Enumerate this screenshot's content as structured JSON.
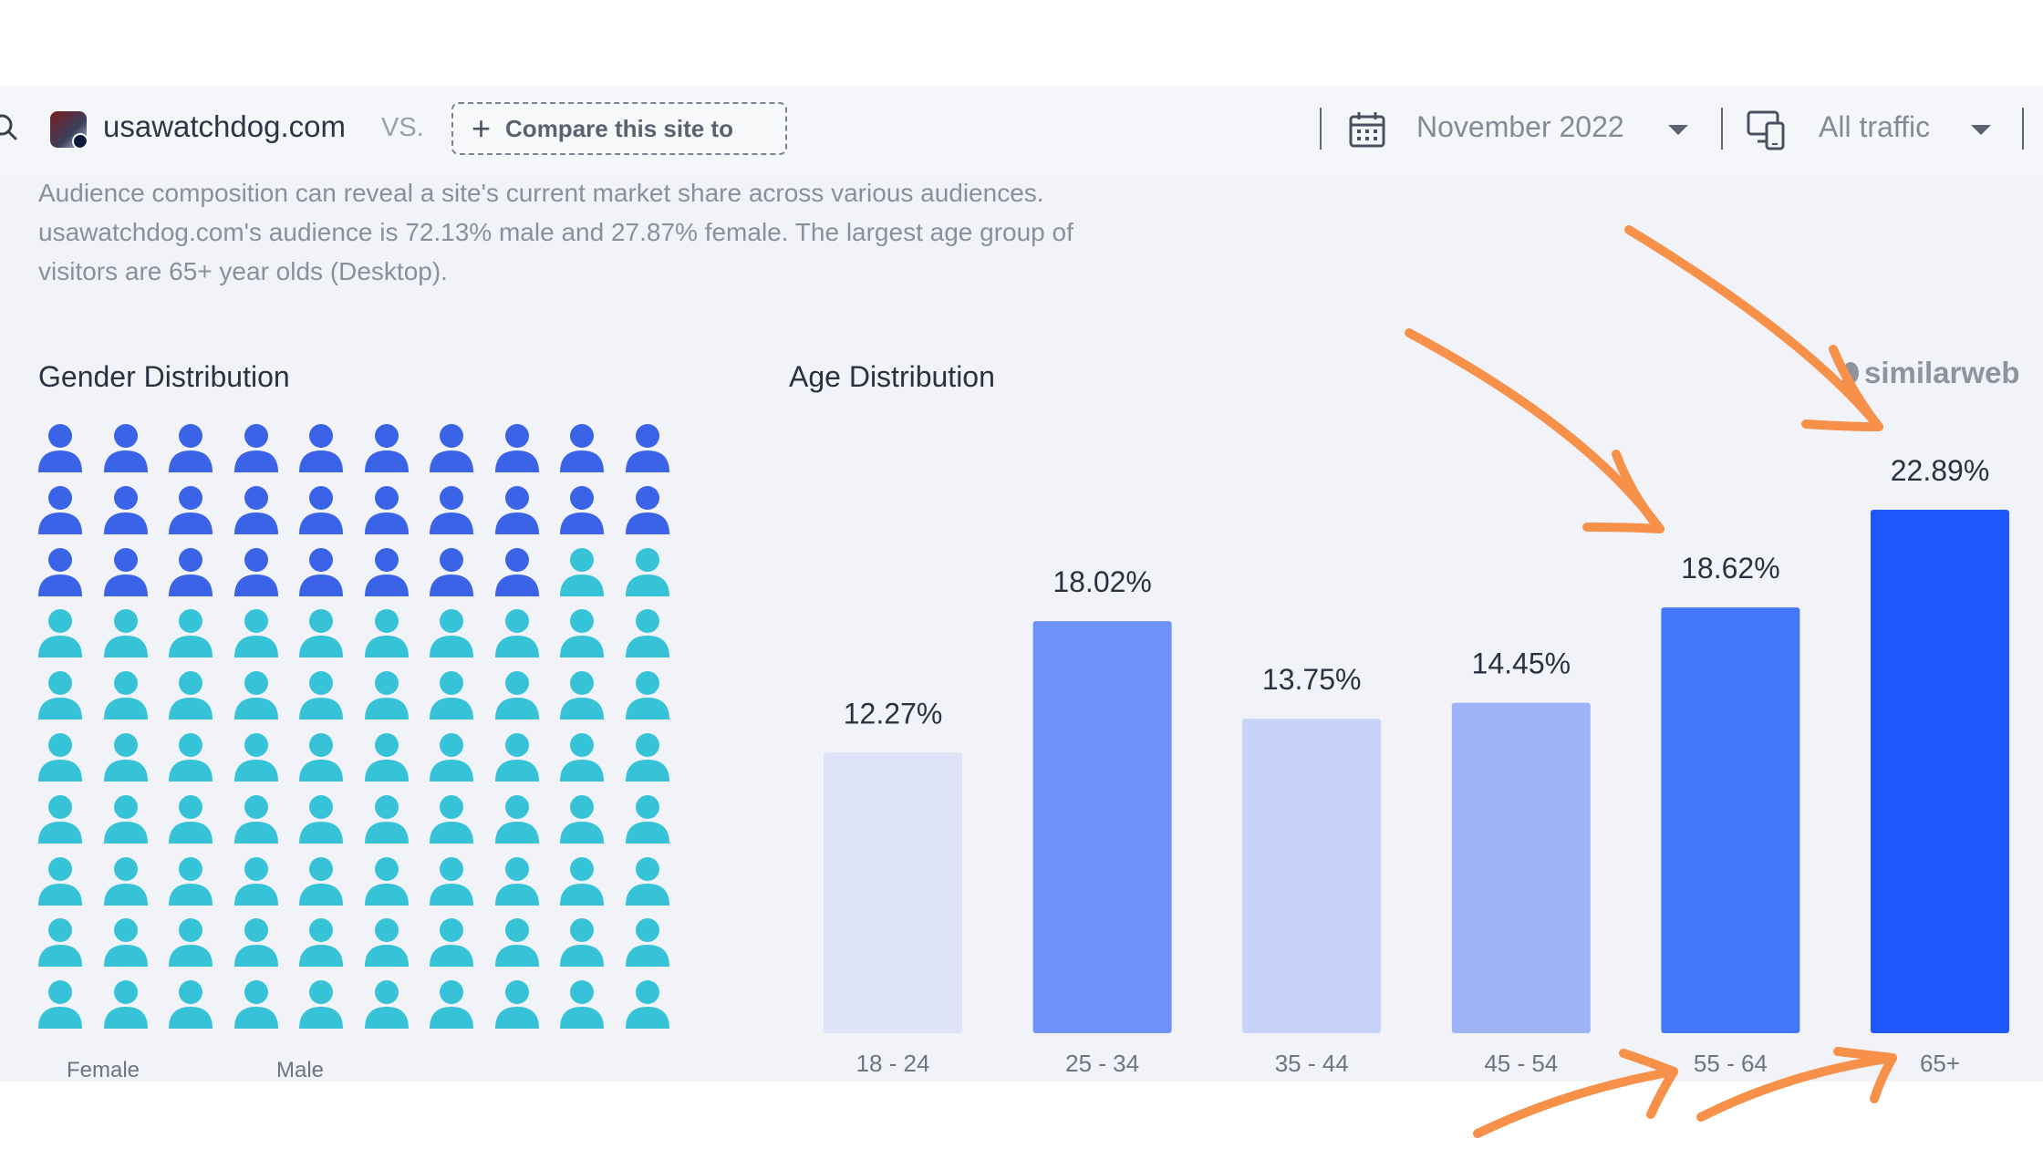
{
  "header": {
    "site_name": "usawatchdog.com",
    "vs_label": "VS.",
    "compare_label": "Compare this site to",
    "date_label": "November 2022",
    "traffic_label": "All traffic"
  },
  "description": "Audience composition can reveal a site's current market share across various audiences. usawatchdog.com's audience is 72.13% male and 27.87% female. The largest age group of visitors are 65+ year olds (Desktop).",
  "gender": {
    "title": "Gender Distribution",
    "female_label": "Female",
    "male_label": "Male",
    "male_percent": 72.13,
    "female_percent": 27.87,
    "male_color": "#3b63e8",
    "female_color": "#36c3d8"
  },
  "age": {
    "title": "Age Distribution"
  },
  "brand": {
    "logo_text": "similarweb"
  },
  "colors": {
    "accent": "#1f57ff",
    "annotation": "#f7914a"
  },
  "chart_data": {
    "type": "bar",
    "title": "Age Distribution",
    "categories": [
      "18 - 24",
      "25 - 34",
      "35 - 44",
      "45 - 54",
      "55 - 64",
      "65+"
    ],
    "values": [
      12.27,
      18.02,
      13.75,
      14.45,
      18.62,
      22.89
    ],
    "value_labels": [
      "12.27%",
      "18.02%",
      "13.75%",
      "14.45%",
      "18.62%",
      "22.89%"
    ],
    "bar_colors": [
      "#dfe3f7",
      "#6e92f8",
      "#c8d3f8",
      "#9db4f7",
      "#4577fb",
      "#1f57ff"
    ],
    "ylim": [
      0,
      23
    ]
  }
}
